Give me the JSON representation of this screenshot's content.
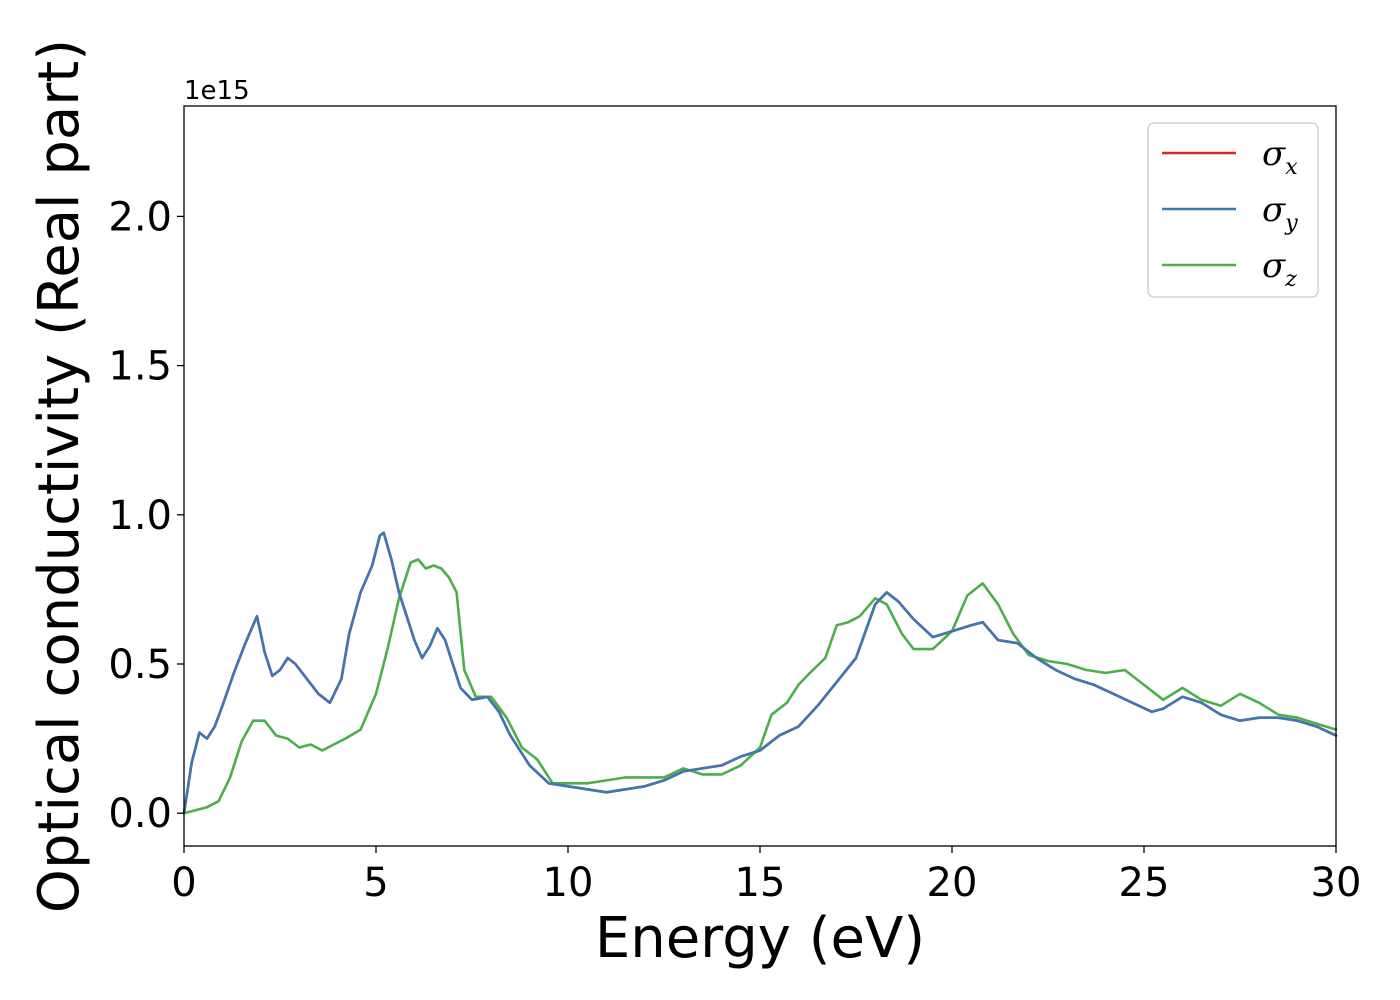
{
  "chart_data": {
    "type": "line",
    "xlabel": "Energy (eV)",
    "ylabel": "Optical conductivity (Real part)",
    "y_offset_label": "1e15",
    "xlim": [
      0,
      30
    ],
    "ylim": [
      -0.11,
      2.37
    ],
    "xticks": [
      0,
      5,
      10,
      15,
      20,
      25,
      30
    ],
    "xtick_labels": [
      "0",
      "5",
      "10",
      "15",
      "20",
      "25",
      "30"
    ],
    "yticks": [
      0.0,
      0.5,
      1.0,
      1.5,
      2.0
    ],
    "ytick_labels": [
      "0.0",
      "0.5",
      "1.0",
      "1.5",
      "2.0"
    ],
    "grid": false,
    "legend_position": "top-right",
    "series": [
      {
        "name": "σx",
        "symbol": "σ",
        "sub": "x",
        "color": "#d62728",
        "x": [
          0,
          0.2,
          0.4,
          0.6,
          0.8,
          1.0,
          1.3,
          1.6,
          1.9,
          2.1,
          2.3,
          2.5,
          2.7,
          2.9,
          3.2,
          3.5,
          3.8,
          4.1,
          4.3,
          4.6,
          4.9,
          5.1,
          5.2,
          5.4,
          5.6,
          5.8,
          6.0,
          6.2,
          6.4,
          6.6,
          6.8,
          7.0,
          7.2,
          7.5,
          7.9,
          8.2,
          8.5,
          9.0,
          9.5,
          10.0,
          10.5,
          11.0,
          11.5,
          12.0,
          12.5,
          13.0,
          13.5,
          14.0,
          14.5,
          15.0,
          15.5,
          16.0,
          16.5,
          17.0,
          17.5,
          18.0,
          18.3,
          18.6,
          19.0,
          19.5,
          20.0,
          20.5,
          20.8,
          21.2,
          21.7,
          22.2,
          22.7,
          23.2,
          23.7,
          24.2,
          24.7,
          25.2,
          25.5,
          26.0,
          26.5,
          27.0,
          27.5,
          28.0,
          28.5,
          29.0,
          29.5,
          30.0
        ],
        "y": [
          0.0,
          0.17,
          0.27,
          0.25,
          0.29,
          0.36,
          0.47,
          0.57,
          0.66,
          0.54,
          0.46,
          0.48,
          0.52,
          0.5,
          0.45,
          0.4,
          0.37,
          0.45,
          0.6,
          0.74,
          0.83,
          0.93,
          0.94,
          0.85,
          0.74,
          0.66,
          0.58,
          0.52,
          0.56,
          0.62,
          0.58,
          0.5,
          0.42,
          0.38,
          0.39,
          0.34,
          0.26,
          0.16,
          0.1,
          0.09,
          0.08,
          0.07,
          0.08,
          0.09,
          0.11,
          0.14,
          0.15,
          0.16,
          0.19,
          0.21,
          0.26,
          0.29,
          0.36,
          0.44,
          0.52,
          0.7,
          0.74,
          0.71,
          0.65,
          0.59,
          0.61,
          0.63,
          0.64,
          0.58,
          0.57,
          0.52,
          0.48,
          0.45,
          0.43,
          0.4,
          0.37,
          0.34,
          0.35,
          0.39,
          0.37,
          0.33,
          0.31,
          0.32,
          0.32,
          0.31,
          0.29,
          0.26
        ]
      },
      {
        "name": "σy",
        "symbol": "σ",
        "sub": "y",
        "color": "#3f77b2",
        "x": [
          0,
          0.2,
          0.4,
          0.6,
          0.8,
          1.0,
          1.3,
          1.6,
          1.9,
          2.1,
          2.3,
          2.5,
          2.7,
          2.9,
          3.2,
          3.5,
          3.8,
          4.1,
          4.3,
          4.6,
          4.9,
          5.1,
          5.2,
          5.4,
          5.6,
          5.8,
          6.0,
          6.2,
          6.4,
          6.6,
          6.8,
          7.0,
          7.2,
          7.5,
          7.9,
          8.2,
          8.5,
          9.0,
          9.5,
          10.0,
          10.5,
          11.0,
          11.5,
          12.0,
          12.5,
          13.0,
          13.5,
          14.0,
          14.5,
          15.0,
          15.5,
          16.0,
          16.5,
          17.0,
          17.5,
          18.0,
          18.3,
          18.6,
          19.0,
          19.5,
          20.0,
          20.5,
          20.8,
          21.2,
          21.7,
          22.2,
          22.7,
          23.2,
          23.7,
          24.2,
          24.7,
          25.2,
          25.5,
          26.0,
          26.5,
          27.0,
          27.5,
          28.0,
          28.5,
          29.0,
          29.5,
          30.0
        ],
        "y": [
          0.0,
          0.17,
          0.27,
          0.25,
          0.29,
          0.36,
          0.47,
          0.57,
          0.66,
          0.54,
          0.46,
          0.48,
          0.52,
          0.5,
          0.45,
          0.4,
          0.37,
          0.45,
          0.6,
          0.74,
          0.83,
          0.93,
          0.94,
          0.85,
          0.74,
          0.66,
          0.58,
          0.52,
          0.56,
          0.62,
          0.58,
          0.5,
          0.42,
          0.38,
          0.39,
          0.34,
          0.26,
          0.16,
          0.1,
          0.09,
          0.08,
          0.07,
          0.08,
          0.09,
          0.11,
          0.14,
          0.15,
          0.16,
          0.19,
          0.21,
          0.26,
          0.29,
          0.36,
          0.44,
          0.52,
          0.7,
          0.74,
          0.71,
          0.65,
          0.59,
          0.61,
          0.63,
          0.64,
          0.58,
          0.57,
          0.52,
          0.48,
          0.45,
          0.43,
          0.4,
          0.37,
          0.34,
          0.35,
          0.39,
          0.37,
          0.33,
          0.31,
          0.32,
          0.32,
          0.31,
          0.29,
          0.26
        ]
      },
      {
        "name": "σz",
        "symbol": "σ",
        "sub": "z",
        "color": "#4daf4a",
        "x": [
          0,
          0.3,
          0.6,
          0.9,
          1.2,
          1.5,
          1.8,
          2.1,
          2.4,
          2.7,
          3.0,
          3.3,
          3.6,
          3.9,
          4.2,
          4.6,
          5.0,
          5.3,
          5.6,
          5.9,
          6.1,
          6.3,
          6.5,
          6.7,
          6.9,
          7.1,
          7.3,
          7.6,
          8.0,
          8.4,
          8.8,
          9.2,
          9.6,
          10.0,
          10.5,
          11.0,
          11.5,
          12.0,
          12.5,
          13.0,
          13.5,
          14.0,
          14.5,
          15.0,
          15.3,
          15.7,
          16.0,
          16.3,
          16.7,
          17.0,
          17.3,
          17.6,
          18.0,
          18.3,
          18.7,
          19.0,
          19.5,
          20.0,
          20.4,
          20.8,
          21.2,
          21.6,
          22.0,
          22.5,
          23.0,
          23.5,
          24.0,
          24.5,
          25.0,
          25.5,
          26.0,
          26.5,
          27.0,
          27.5,
          28.0,
          28.5,
          29.0,
          29.5,
          30.0
        ],
        "y": [
          0.0,
          0.01,
          0.02,
          0.04,
          0.12,
          0.24,
          0.31,
          0.31,
          0.26,
          0.25,
          0.22,
          0.23,
          0.21,
          0.23,
          0.25,
          0.28,
          0.4,
          0.55,
          0.72,
          0.84,
          0.85,
          0.82,
          0.83,
          0.82,
          0.79,
          0.74,
          0.48,
          0.39,
          0.39,
          0.32,
          0.22,
          0.18,
          0.1,
          0.1,
          0.1,
          0.11,
          0.12,
          0.12,
          0.12,
          0.15,
          0.13,
          0.13,
          0.16,
          0.22,
          0.33,
          0.37,
          0.43,
          0.47,
          0.52,
          0.63,
          0.64,
          0.66,
          0.72,
          0.7,
          0.6,
          0.55,
          0.55,
          0.61,
          0.73,
          0.77,
          0.7,
          0.6,
          0.53,
          0.51,
          0.5,
          0.48,
          0.47,
          0.48,
          0.43,
          0.38,
          0.42,
          0.38,
          0.36,
          0.4,
          0.37,
          0.33,
          0.32,
          0.3,
          0.28
        ]
      }
    ]
  }
}
